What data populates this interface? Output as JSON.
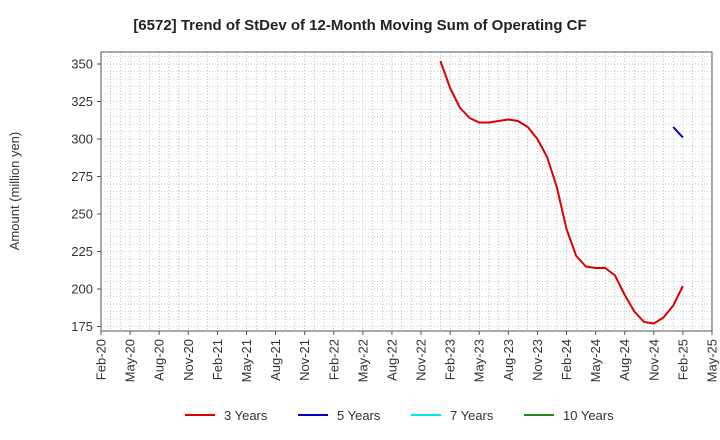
{
  "chart_data": {
    "type": "line",
    "title": "[6572]  Trend of StDev of 12-Month Moving Sum of Operating CF",
    "xlabel": "",
    "ylabel": "Amount (million yen)",
    "ylim": [
      172,
      358
    ],
    "yticks": [
      175,
      200,
      225,
      250,
      275,
      300,
      325,
      350
    ],
    "xlim": [
      "Feb-20",
      "May-25"
    ],
    "xticks": [
      "Feb-20",
      "May-20",
      "Aug-20",
      "Nov-20",
      "Feb-21",
      "May-21",
      "Aug-21",
      "Nov-21",
      "Feb-22",
      "May-22",
      "Aug-22",
      "Nov-22",
      "Feb-23",
      "May-23",
      "Aug-23",
      "Nov-23",
      "Feb-24",
      "May-24",
      "Aug-24",
      "Nov-24",
      "Feb-25",
      "May-25"
    ],
    "grid": true,
    "legend_position": "bottom",
    "series": [
      {
        "name": "3 Years",
        "color": "#dd0000",
        "points": [
          [
            "Jan-23",
            352
          ],
          [
            "Feb-23",
            334
          ],
          [
            "Mar-23",
            321
          ],
          [
            "Apr-23",
            314
          ],
          [
            "May-23",
            311
          ],
          [
            "Jun-23",
            311
          ],
          [
            "Jul-23",
            312
          ],
          [
            "Aug-23",
            313
          ],
          [
            "Sep-23",
            312
          ],
          [
            "Oct-23",
            308
          ],
          [
            "Nov-23",
            300
          ],
          [
            "Dec-23",
            288
          ],
          [
            "Jan-24",
            268
          ],
          [
            "Feb-24",
            240
          ],
          [
            "Mar-24",
            222
          ],
          [
            "Apr-24",
            215
          ],
          [
            "May-24",
            214
          ],
          [
            "Jun-24",
            214
          ],
          [
            "Jul-24",
            209
          ],
          [
            "Aug-24",
            196
          ],
          [
            "Sep-24",
            185
          ],
          [
            "Oct-24",
            178
          ],
          [
            "Nov-24",
            177
          ],
          [
            "Dec-24",
            181
          ],
          [
            "Jan-25",
            189
          ],
          [
            "Feb-25",
            202
          ]
        ]
      },
      {
        "name": "5 Years",
        "color": "#0000cc",
        "points": [
          [
            "Jan-25",
            308
          ],
          [
            "Feb-25",
            301
          ]
        ]
      },
      {
        "name": "7 Years",
        "color": "#00e5ee",
        "points": []
      },
      {
        "name": "10 Years",
        "color": "#228822",
        "points": []
      }
    ]
  }
}
